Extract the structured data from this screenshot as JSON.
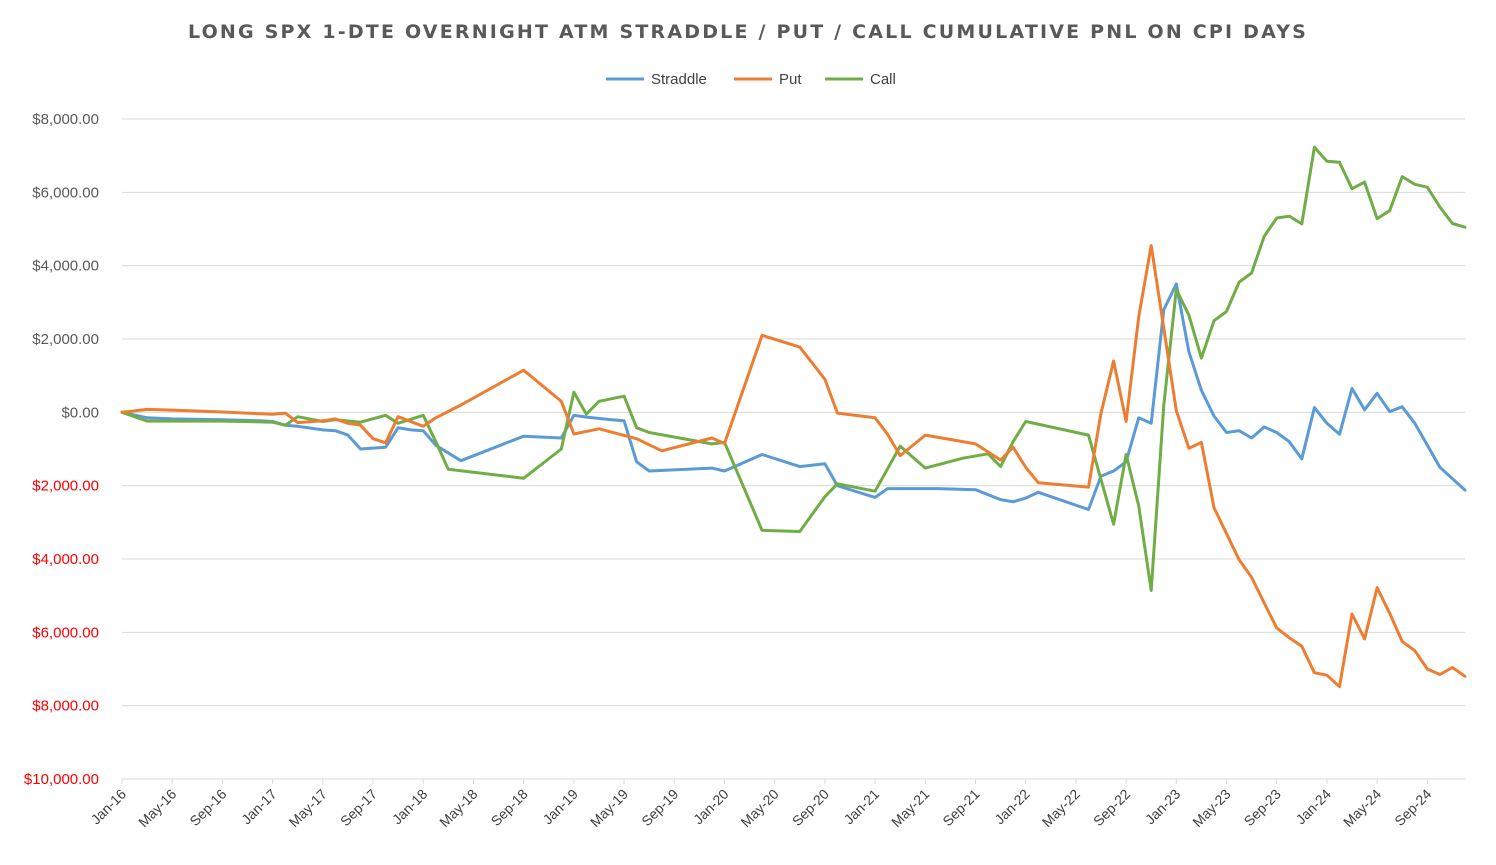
{
  "chart_data": {
    "type": "line",
    "title": "LONG SPX 1-DTE OVERNIGHT ATM STRADDLE / PUT / CALL CUMULATIVE PNL ON CPI DAYS",
    "xlabel": "",
    "ylabel": "",
    "ylim": [
      -10000,
      8000
    ],
    "grid": true,
    "legend": "top-center",
    "y_ticks": [
      {
        "value": 8000,
        "label": "$8,000.00",
        "color": "#595959"
      },
      {
        "value": 6000,
        "label": "$6,000.00",
        "color": "#595959"
      },
      {
        "value": 4000,
        "label": "$4,000.00",
        "color": "#595959"
      },
      {
        "value": 2000,
        "label": "$2,000.00",
        "color": "#595959"
      },
      {
        "value": 0,
        "label": "$0.00",
        "color": "#595959"
      },
      {
        "value": -2000,
        "label": "$2,000.00",
        "color": "#ff0000"
      },
      {
        "value": -4000,
        "label": "$4,000.00",
        "color": "#ff0000"
      },
      {
        "value": -6000,
        "label": "$6,000.00",
        "color": "#ff0000"
      },
      {
        "value": -8000,
        "label": "$8,000.00",
        "color": "#ff0000"
      },
      {
        "value": -10000,
        "label": "$10,000.00",
        "color": "#ff0000"
      }
    ],
    "x_start": "2016-01",
    "x_end": "2024-12",
    "x_ticks": [
      "Jan-16",
      "May-16",
      "Sep-16",
      "Jan-17",
      "May-17",
      "Sep-17",
      "Jan-18",
      "May-18",
      "Sep-18",
      "Jan-19",
      "May-19",
      "Sep-19",
      "Jan-20",
      "May-20",
      "Sep-20",
      "Jan-21",
      "May-21",
      "Sep-21",
      "Jan-22",
      "May-22",
      "Sep-22",
      "Jan-23",
      "May-23",
      "Sep-23",
      "Jan-24",
      "May-24",
      "Sep-24"
    ],
    "series": [
      {
        "name": "Straddle",
        "color": "#5b9bd5",
        "points": [
          [
            "2016-01",
            0
          ],
          [
            "2016-03",
            -150
          ],
          [
            "2016-05",
            -180
          ],
          [
            "2016-09",
            -200
          ],
          [
            "2016-12",
            -230
          ],
          [
            "2017-01",
            -250
          ],
          [
            "2017-02",
            -350
          ],
          [
            "2017-03",
            -380
          ],
          [
            "2017-05",
            -480
          ],
          [
            "2017-06",
            -500
          ],
          [
            "2017-07",
            -620
          ],
          [
            "2017-08",
            -1000
          ],
          [
            "2017-10",
            -950
          ],
          [
            "2017-11",
            -420
          ],
          [
            "2017-12",
            -480
          ],
          [
            "2018-01",
            -500
          ],
          [
            "2018-02",
            -900
          ],
          [
            "2018-04",
            -1320
          ],
          [
            "2018-09",
            -650
          ],
          [
            "2018-12",
            -700
          ],
          [
            "2019-01",
            -80
          ],
          [
            "2019-02",
            -130
          ],
          [
            "2019-04",
            -200
          ],
          [
            "2019-05",
            -230
          ],
          [
            "2019-06",
            -1350
          ],
          [
            "2019-07",
            -1600
          ],
          [
            "2019-12",
            -1520
          ],
          [
            "2020-01",
            -1600
          ],
          [
            "2020-04",
            -1150
          ],
          [
            "2020-07",
            -1480
          ],
          [
            "2020-09",
            -1400
          ],
          [
            "2020-10",
            -2000
          ],
          [
            "2021-01",
            -2320
          ],
          [
            "2021-02",
            -2080
          ],
          [
            "2021-06",
            -2080
          ],
          [
            "2021-09",
            -2110
          ],
          [
            "2021-11",
            -2380
          ],
          [
            "2021-12",
            -2440
          ],
          [
            "2022-01",
            -2340
          ],
          [
            "2022-02",
            -2180
          ],
          [
            "2022-06",
            -2650
          ],
          [
            "2022-07",
            -1740
          ],
          [
            "2022-08",
            -1600
          ],
          [
            "2022-09",
            -1350
          ],
          [
            "2022-10",
            -150
          ],
          [
            "2022-11",
            -300
          ],
          [
            "2022-12",
            2800
          ],
          [
            "2023-01",
            3500
          ],
          [
            "2023-02",
            1650
          ],
          [
            "2023-03",
            600
          ],
          [
            "2023-04",
            -100
          ],
          [
            "2023-05",
            -550
          ],
          [
            "2023-06",
            -500
          ],
          [
            "2023-07",
            -700
          ],
          [
            "2023-08",
            -400
          ],
          [
            "2023-09",
            -550
          ],
          [
            "2023-10",
            -800
          ],
          [
            "2023-11",
            -1270
          ],
          [
            "2023-12",
            130
          ],
          [
            "2024-01",
            -300
          ],
          [
            "2024-02",
            -600
          ],
          [
            "2024-03",
            650
          ],
          [
            "2024-04",
            70
          ],
          [
            "2024-05",
            520
          ],
          [
            "2024-06",
            20
          ],
          [
            "2024-07",
            150
          ],
          [
            "2024-08",
            -300
          ],
          [
            "2024-10",
            -1500
          ],
          [
            "2024-12",
            -2120
          ]
        ]
      },
      {
        "name": "Put",
        "color": "#ed7d31",
        "points": [
          [
            "2016-01",
            0
          ],
          [
            "2016-03",
            80
          ],
          [
            "2016-05",
            60
          ],
          [
            "2016-09",
            10
          ],
          [
            "2016-12",
            -40
          ],
          [
            "2017-01",
            -50
          ],
          [
            "2017-02",
            -20
          ],
          [
            "2017-03",
            -280
          ],
          [
            "2017-05",
            -230
          ],
          [
            "2017-06",
            -180
          ],
          [
            "2017-07",
            -300
          ],
          [
            "2017-08",
            -350
          ],
          [
            "2017-09",
            -720
          ],
          [
            "2017-10",
            -830
          ],
          [
            "2017-11",
            -120
          ],
          [
            "2018-01",
            -380
          ],
          [
            "2018-02",
            -150
          ],
          [
            "2018-04",
            200
          ],
          [
            "2018-09",
            1150
          ],
          [
            "2018-12",
            300
          ],
          [
            "2019-01",
            -590
          ],
          [
            "2019-03",
            -450
          ],
          [
            "2019-06",
            -720
          ],
          [
            "2019-08",
            -1050
          ],
          [
            "2019-12",
            -700
          ],
          [
            "2020-01",
            -850
          ],
          [
            "2020-04",
            2100
          ],
          [
            "2020-07",
            1780
          ],
          [
            "2020-09",
            900
          ],
          [
            "2020-10",
            -20
          ],
          [
            "2021-01",
            -150
          ],
          [
            "2021-02",
            -600
          ],
          [
            "2021-03",
            -1180
          ],
          [
            "2021-05",
            -620
          ],
          [
            "2021-09",
            -860
          ],
          [
            "2021-11",
            -1300
          ],
          [
            "2021-12",
            -950
          ],
          [
            "2022-01",
            -1500
          ],
          [
            "2022-02",
            -1920
          ],
          [
            "2022-06",
            -2040
          ],
          [
            "2022-07",
            -20
          ],
          [
            "2022-08",
            1400
          ],
          [
            "2022-09",
            -250
          ],
          [
            "2022-10",
            2600
          ],
          [
            "2022-11",
            4550
          ],
          [
            "2023-01",
            50
          ],
          [
            "2023-02",
            -980
          ],
          [
            "2023-03",
            -820
          ],
          [
            "2023-04",
            -2600
          ],
          [
            "2023-06",
            -4020
          ],
          [
            "2023-07",
            -4500
          ],
          [
            "2023-08",
            -5200
          ],
          [
            "2023-09",
            -5880
          ],
          [
            "2023-10",
            -6150
          ],
          [
            "2023-11",
            -6380
          ],
          [
            "2023-12",
            -7100
          ],
          [
            "2024-01",
            -7170
          ],
          [
            "2024-02",
            -7480
          ],
          [
            "2024-03",
            -5500
          ],
          [
            "2024-04",
            -6180
          ],
          [
            "2024-05",
            -4780
          ],
          [
            "2024-06",
            -5480
          ],
          [
            "2024-07",
            -6250
          ],
          [
            "2024-08",
            -6500
          ],
          [
            "2024-09",
            -7000
          ],
          [
            "2024-10",
            -7150
          ],
          [
            "2024-11",
            -6960
          ],
          [
            "2024-12",
            -7200
          ]
        ]
      },
      {
        "name": "Call",
        "color": "#70ad47",
        "points": [
          [
            "2016-01",
            0
          ],
          [
            "2016-03",
            -240
          ],
          [
            "2016-05",
            -240
          ],
          [
            "2016-09",
            -240
          ],
          [
            "2016-12",
            -260
          ],
          [
            "2017-01",
            -270
          ],
          [
            "2017-02",
            -350
          ],
          [
            "2017-03",
            -120
          ],
          [
            "2017-05",
            -250
          ],
          [
            "2017-06",
            -200
          ],
          [
            "2017-08",
            -270
          ],
          [
            "2017-10",
            -80
          ],
          [
            "2017-11",
            -300
          ],
          [
            "2018-01",
            -80
          ],
          [
            "2018-02",
            -800
          ],
          [
            "2018-03",
            -1550
          ],
          [
            "2018-09",
            -1800
          ],
          [
            "2018-12",
            -1000
          ],
          [
            "2019-01",
            550
          ],
          [
            "2019-02",
            -50
          ],
          [
            "2019-03",
            300
          ],
          [
            "2019-05",
            440
          ],
          [
            "2019-06",
            -420
          ],
          [
            "2019-07",
            -550
          ],
          [
            "2019-12",
            -860
          ],
          [
            "2020-01",
            -820
          ],
          [
            "2020-04",
            -3220
          ],
          [
            "2020-07",
            -3250
          ],
          [
            "2020-09",
            -2300
          ],
          [
            "2020-10",
            -1950
          ],
          [
            "2021-01",
            -2150
          ],
          [
            "2021-03",
            -920
          ],
          [
            "2021-05",
            -1520
          ],
          [
            "2021-08",
            -1250
          ],
          [
            "2021-10",
            -1130
          ],
          [
            "2021-11",
            -1480
          ],
          [
            "2021-12",
            -800
          ],
          [
            "2022-01",
            -250
          ],
          [
            "2022-06",
            -620
          ],
          [
            "2022-08",
            -3050
          ],
          [
            "2022-09",
            -1150
          ],
          [
            "2022-10",
            -2550
          ],
          [
            "2022-11",
            -4860
          ],
          [
            "2022-12",
            200
          ],
          [
            "2023-01",
            3350
          ],
          [
            "2023-02",
            2650
          ],
          [
            "2023-03",
            1480
          ],
          [
            "2023-04",
            2500
          ],
          [
            "2023-05",
            2750
          ],
          [
            "2023-06",
            3550
          ],
          [
            "2023-07",
            3800
          ],
          [
            "2023-08",
            4800
          ],
          [
            "2023-09",
            5300
          ],
          [
            "2023-10",
            5350
          ],
          [
            "2023-11",
            5140
          ],
          [
            "2023-12",
            7230
          ],
          [
            "2024-01",
            6850
          ],
          [
            "2024-02",
            6820
          ],
          [
            "2024-03",
            6100
          ],
          [
            "2024-04",
            6280
          ],
          [
            "2024-05",
            5280
          ],
          [
            "2024-06",
            5500
          ],
          [
            "2024-07",
            6430
          ],
          [
            "2024-08",
            6220
          ],
          [
            "2024-09",
            6140
          ],
          [
            "2024-10",
            5600
          ],
          [
            "2024-11",
            5150
          ],
          [
            "2024-12",
            5050
          ]
        ]
      }
    ]
  }
}
